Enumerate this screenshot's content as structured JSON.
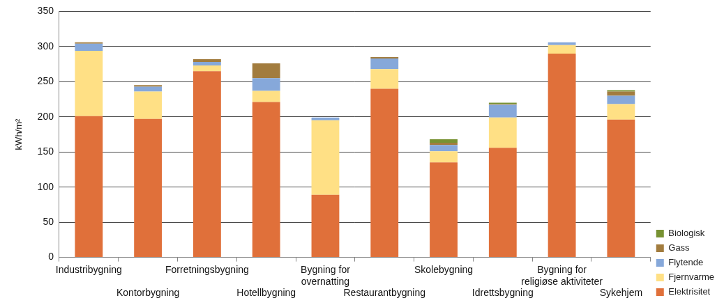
{
  "chart_data": {
    "type": "bar",
    "stacked": true,
    "y_label": "kWh/m²",
    "categories": [
      "Industribygning",
      "Kontorbygning",
      "Forretningsbygning",
      "Hotellbygning",
      "Bygning for overnatting",
      "Restaurantbygning",
      "Skolebygning",
      "Idrettsbygning",
      "Bygning for religiøse aktiviteter",
      "Sykehjem"
    ],
    "series": [
      {
        "name": "Elektrisitet",
        "color": "#e0703a",
        "values": [
          201,
          197,
          265,
          221,
          89,
          240,
          135,
          156,
          290,
          196
        ]
      },
      {
        "name": "Fjernvarme",
        "color": "#ffe085",
        "values": [
          93,
          39,
          8,
          16,
          106,
          28,
          16,
          43,
          12,
          22
        ]
      },
      {
        "name": "Flytende",
        "color": "#86a8da",
        "values": [
          10,
          7,
          5,
          18,
          4,
          15,
          9,
          18,
          4,
          12
        ]
      },
      {
        "name": "Gass",
        "color": "#a27c3e",
        "values": [
          2,
          2,
          4,
          21,
          0,
          2,
          3,
          1,
          0,
          6
        ]
      },
      {
        "name": "Biologisk",
        "color": "#779232",
        "values": [
          0,
          0,
          0,
          0,
          0,
          0,
          5,
          2,
          0,
          2
        ]
      }
    ],
    "ylim": [
      0,
      350
    ],
    "yticks": [
      0,
      50,
      100,
      150,
      200,
      250,
      300,
      350
    ],
    "grid": true,
    "legend": "right"
  }
}
